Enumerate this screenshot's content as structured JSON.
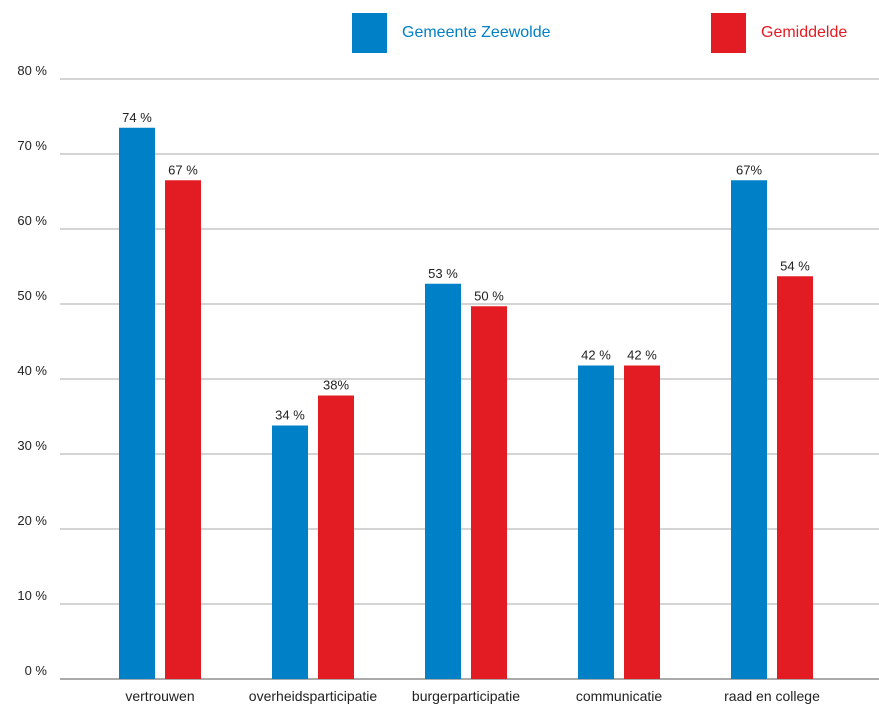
{
  "chart_data": {
    "type": "bar",
    "categories": [
      "vertrouwen",
      "overheidsparticipatie",
      "burgerparticipatie",
      "communicatie",
      "raad en college"
    ],
    "series": [
      {
        "name": "Gemeente Zeewolde",
        "color": "#0080c6",
        "values": [
          73.5,
          33.8,
          52.7,
          41.8,
          66.5
        ],
        "labels": [
          "74 %",
          "34 %",
          "53 %",
          "42 %",
          "67%"
        ]
      },
      {
        "name": "Gemiddelde",
        "color": "#e31b23",
        "values": [
          66.5,
          37.8,
          49.7,
          41.8,
          53.7
        ],
        "labels": [
          "67 %",
          "38%",
          "50 %",
          "42 %",
          "54 %"
        ]
      }
    ],
    "ylim": [
      0,
      80
    ],
    "yticks": [
      "0 %",
      "10 %",
      "20 %",
      "30 %",
      "40 %",
      "50 %",
      "60 %",
      "70 %",
      "80 %"
    ],
    "grid": true,
    "legend_position": "top-right"
  }
}
